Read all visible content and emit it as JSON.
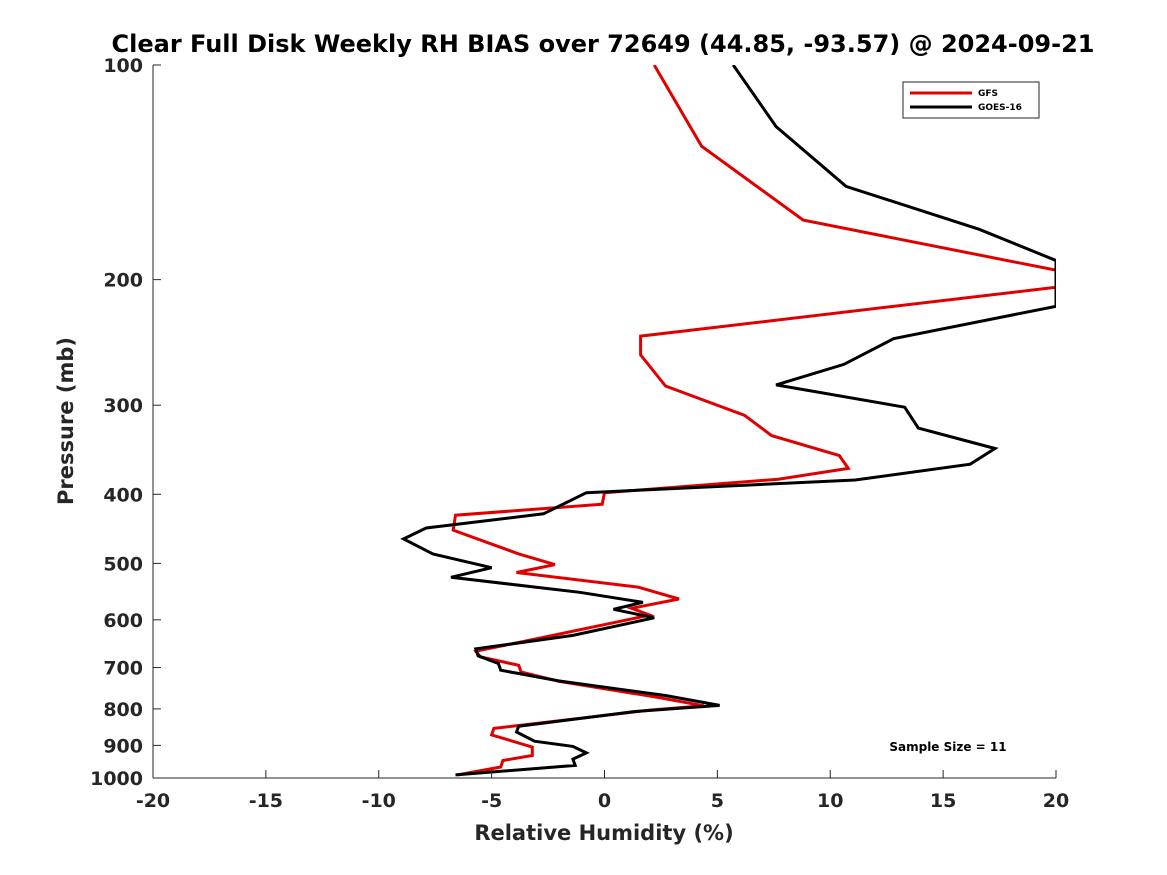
{
  "chart_data": {
    "type": "line",
    "title": "Clear Full Disk Weekly RH BIAS over 72649 (44.85, -93.57) @ 2024-09-21",
    "xlabel": "Relative Humidity (%)",
    "ylabel": "Pressure (mb)",
    "xlim": [
      -20,
      20
    ],
    "ylim": [
      100,
      1000
    ],
    "y_scale": "log",
    "y_reversed": true,
    "x_ticks": [
      -20,
      -15,
      -10,
      -5,
      0,
      5,
      10,
      15,
      20
    ],
    "y_ticks": [
      100,
      200,
      300,
      400,
      500,
      600,
      700,
      800,
      900,
      1000
    ],
    "grid": false,
    "legend_position": "top-right",
    "annotation": "Sample Size = 11",
    "series": [
      {
        "name": "GFS",
        "color": "#e00000",
        "x": [
          2.2,
          4.3,
          8.8,
          20.0,
          20.0,
          1.6,
          1.6,
          2.7,
          6.2,
          7.4,
          10.4,
          10.8,
          7.7,
          0.0,
          -0.1,
          -6.6,
          -6.7,
          -3.8,
          -2.2,
          -3.9,
          1.5,
          3.3,
          1.2,
          2.0,
          -2.6,
          -5.7,
          -5.5,
          -3.8,
          -3.7,
          -2.0,
          2.3,
          4.4,
          2.0,
          -4.9,
          -5.0,
          -3.2,
          -3.2,
          -4.5,
          -4.6,
          -6.5
        ],
        "y": [
          100,
          130,
          165,
          194,
          205,
          240,
          255,
          282,
          310,
          331,
          353,
          368,
          381,
          398,
          413,
          428,
          449,
          485,
          502,
          515,
          540,
          561,
          578,
          591,
          634,
          664,
          676,
          695,
          710,
          732,
          770,
          792,
          803,
          852,
          870,
          905,
          930,
          945,
          965,
          990
        ]
      },
      {
        "name": "GOES-16",
        "color": "#000000",
        "x": [
          5.7,
          7.6,
          10.7,
          16.6,
          20.0,
          20.0,
          12.8,
          10.6,
          7.6,
          13.3,
          13.9,
          17.3,
          16.2,
          11.1,
          -0.8,
          -2.7,
          -7.9,
          -8.9,
          -7.6,
          -5.0,
          -6.8,
          -1.1,
          1.7,
          0.4,
          2.2,
          -1.4,
          -5.7,
          -5.6,
          -4.7,
          -4.6,
          -2.0,
          2.7,
          5.1,
          1.3,
          -3.8,
          -3.9,
          -3.1,
          -1.4,
          -0.8,
          -1.4,
          -1.3,
          -6.6
        ],
        "y": [
          100,
          122,
          148,
          170,
          188,
          218,
          242,
          263,
          281,
          302,
          323,
          345,
          363,
          382,
          398,
          426,
          446,
          462,
          485,
          507,
          523,
          549,
          567,
          580,
          596,
          631,
          659,
          674,
          691,
          706,
          731,
          766,
          791,
          807,
          846,
          862,
          888,
          903,
          922,
          941,
          960,
          990
        ]
      }
    ]
  }
}
